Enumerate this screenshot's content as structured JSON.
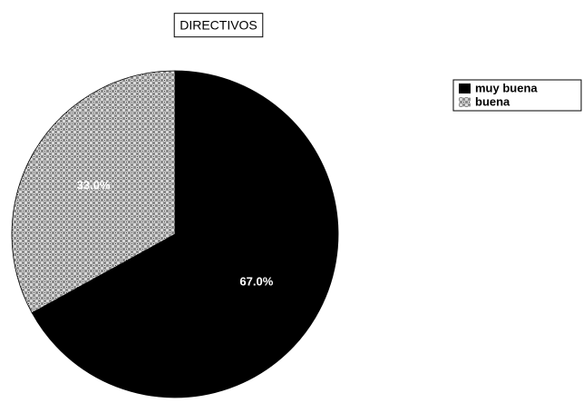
{
  "chart_data": {
    "type": "pie",
    "title": "DIRECTIVOS",
    "categories": [
      "muy buena",
      "buena"
    ],
    "values": [
      67,
      33
    ],
    "value_labels": [
      "67.0%",
      "33.0%"
    ],
    "colors": [
      "#000000",
      "#8c8c8c"
    ],
    "legend": "top-right"
  }
}
